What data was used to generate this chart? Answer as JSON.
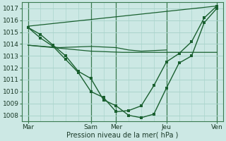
{
  "xlabel": "Pression niveau de la mer( hPa )",
  "bg_color": "#cce8e4",
  "grid_color": "#aad4cc",
  "line_color": "#1a6030",
  "vline_color": "#3a7a50",
  "ylim": [
    1007.5,
    1017.5
  ],
  "yticks": [
    1008,
    1009,
    1010,
    1011,
    1012,
    1013,
    1014,
    1015,
    1016,
    1017
  ],
  "xtick_labels": [
    "Mar",
    "Sam",
    "Mer",
    "Jeu",
    "Ven"
  ],
  "xtick_positions": [
    0,
    10,
    14,
    22,
    30
  ],
  "xlim": [
    -1,
    31
  ],
  "straight_line": {
    "x": [
      0,
      30
    ],
    "y": [
      1015.5,
      1017.2
    ]
  },
  "flat_line1": {
    "x": [
      0,
      1,
      2,
      3,
      4,
      5,
      6,
      7,
      8,
      9,
      10,
      11,
      12,
      13,
      14,
      15,
      16,
      17,
      18,
      19,
      20,
      21,
      22,
      23,
      24,
      25,
      26,
      27,
      28,
      29,
      30
    ],
    "y": [
      1013.9,
      1013.85,
      1013.8,
      1013.75,
      1013.7,
      1013.65,
      1013.6,
      1013.55,
      1013.5,
      1013.45,
      1013.4,
      1013.38,
      1013.36,
      1013.34,
      1013.32,
      1013.3,
      1013.3,
      1013.3,
      1013.3,
      1013.3,
      1013.3,
      1013.3,
      1013.3,
      1013.3,
      1013.3,
      1013.3,
      1013.3,
      1013.3,
      1013.3,
      1013.3,
      1013.3
    ]
  },
  "flat_line2": {
    "x": [
      0,
      5,
      10,
      14,
      16,
      18,
      22
    ],
    "y": [
      1013.9,
      1013.7,
      1013.8,
      1013.7,
      1013.5,
      1013.4,
      1013.5
    ]
  },
  "deep_line": {
    "x": [
      0,
      2,
      4,
      6,
      8,
      10,
      12,
      14,
      16,
      18,
      20,
      22,
      24,
      26,
      28,
      30
    ],
    "y": [
      1015.4,
      1014.8,
      1013.9,
      1013.0,
      1011.7,
      1011.1,
      1009.3,
      1008.8,
      1008.0,
      1007.8,
      1008.1,
      1010.3,
      1012.4,
      1013.0,
      1015.8,
      1017.0
    ]
  },
  "med_line": {
    "x": [
      0,
      2,
      4,
      6,
      8,
      10,
      12,
      14,
      16,
      18,
      20,
      22,
      24,
      26,
      28,
      30
    ],
    "y": [
      1015.4,
      1014.5,
      1013.8,
      1012.7,
      1011.6,
      1010.0,
      1009.5,
      1008.3,
      1008.4,
      1008.8,
      1010.5,
      1012.5,
      1013.2,
      1014.2,
      1016.2,
      1017.2
    ]
  }
}
